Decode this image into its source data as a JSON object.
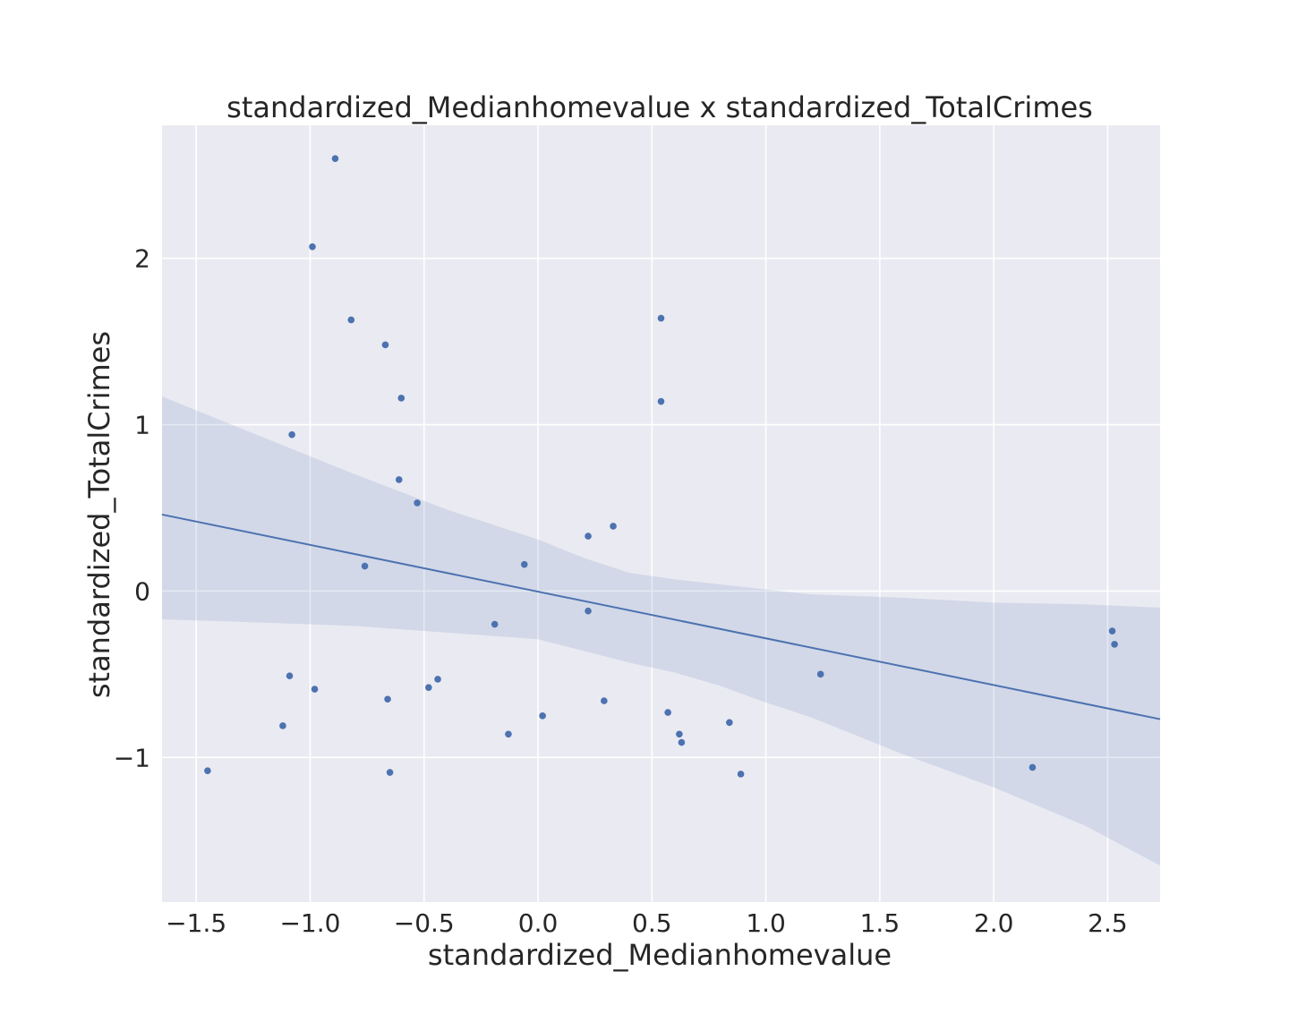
{
  "chart_data": {
    "type": "scatter",
    "title": "standardized_Medianhomevalue x standardized_TotalCrimes",
    "xlabel": "standardized_Medianhomevalue",
    "ylabel": "standardized_TotalCrimes",
    "xlim": [
      -1.65,
      2.73
    ],
    "ylim": [
      -1.87,
      2.8
    ],
    "xticks": [
      -1.5,
      -1.0,
      -0.5,
      0.0,
      0.5,
      1.0,
      1.5,
      2.0,
      2.5
    ],
    "xtick_labels": [
      "−1.5",
      "−1.0",
      "−0.5",
      "0.0",
      "0.5",
      "1.0",
      "1.5",
      "2.0",
      "2.5"
    ],
    "yticks": [
      -1,
      0,
      1,
      2
    ],
    "ytick_labels": [
      "−1",
      "0",
      "1",
      "2"
    ],
    "grid": true,
    "colors": {
      "background": "#eaeaf2",
      "grid": "#ffffff",
      "points": "#4c72b0",
      "line": "#4c72b0",
      "band": "#4c72b0"
    },
    "points": [
      {
        "x": -0.89,
        "y": 2.6
      },
      {
        "x": -0.99,
        "y": 2.07
      },
      {
        "x": -0.82,
        "y": 1.63
      },
      {
        "x": -0.67,
        "y": 1.48
      },
      {
        "x": -0.6,
        "y": 1.16
      },
      {
        "x": -1.08,
        "y": 0.94
      },
      {
        "x": -0.61,
        "y": 0.67
      },
      {
        "x": -0.53,
        "y": 0.53
      },
      {
        "x": -0.76,
        "y": 0.15
      },
      {
        "x": 0.54,
        "y": 1.64
      },
      {
        "x": 0.54,
        "y": 1.14
      },
      {
        "x": 0.22,
        "y": 0.33
      },
      {
        "x": 0.33,
        "y": 0.39
      },
      {
        "x": -0.06,
        "y": 0.16
      },
      {
        "x": 0.22,
        "y": -0.12
      },
      {
        "x": -0.19,
        "y": -0.2
      },
      {
        "x": -1.09,
        "y": -0.51
      },
      {
        "x": -0.98,
        "y": -0.59
      },
      {
        "x": -0.66,
        "y": -0.65
      },
      {
        "x": -0.48,
        "y": -0.58
      },
      {
        "x": -0.44,
        "y": -0.53
      },
      {
        "x": -1.12,
        "y": -0.81
      },
      {
        "x": -1.45,
        "y": -1.08
      },
      {
        "x": -0.65,
        "y": -1.09
      },
      {
        "x": -0.13,
        "y": -0.86
      },
      {
        "x": 0.02,
        "y": -0.75
      },
      {
        "x": 0.29,
        "y": -0.66
      },
      {
        "x": 0.57,
        "y": -0.73
      },
      {
        "x": 0.62,
        "y": -0.86
      },
      {
        "x": 0.63,
        "y": -0.91
      },
      {
        "x": 0.84,
        "y": -0.79
      },
      {
        "x": 0.89,
        "y": -1.1
      },
      {
        "x": 1.24,
        "y": -0.5
      },
      {
        "x": 2.17,
        "y": -1.06
      },
      {
        "x": 2.52,
        "y": -0.24
      },
      {
        "x": 2.53,
        "y": -0.32
      }
    ],
    "regression_line": [
      {
        "x": -1.65,
        "y": 0.46
      },
      {
        "x": 2.73,
        "y": -0.77
      }
    ],
    "confidence_band": {
      "x": [
        -1.65,
        -1.2,
        -0.8,
        -0.4,
        0.0,
        0.2,
        0.4,
        0.6,
        0.8,
        1.0,
        1.2,
        1.4,
        1.6,
        2.0,
        2.4,
        2.73
      ],
      "upper": [
        1.17,
        0.92,
        0.7,
        0.49,
        0.31,
        0.2,
        0.11,
        0.07,
        0.04,
        0.01,
        -0.02,
        -0.03,
        -0.04,
        -0.07,
        -0.08,
        -0.1
      ],
      "lower": [
        -0.17,
        -0.19,
        -0.21,
        -0.25,
        -0.29,
        -0.36,
        -0.43,
        -0.49,
        -0.57,
        -0.67,
        -0.76,
        -0.87,
        -0.98,
        -1.18,
        -1.41,
        -1.65
      ]
    }
  }
}
